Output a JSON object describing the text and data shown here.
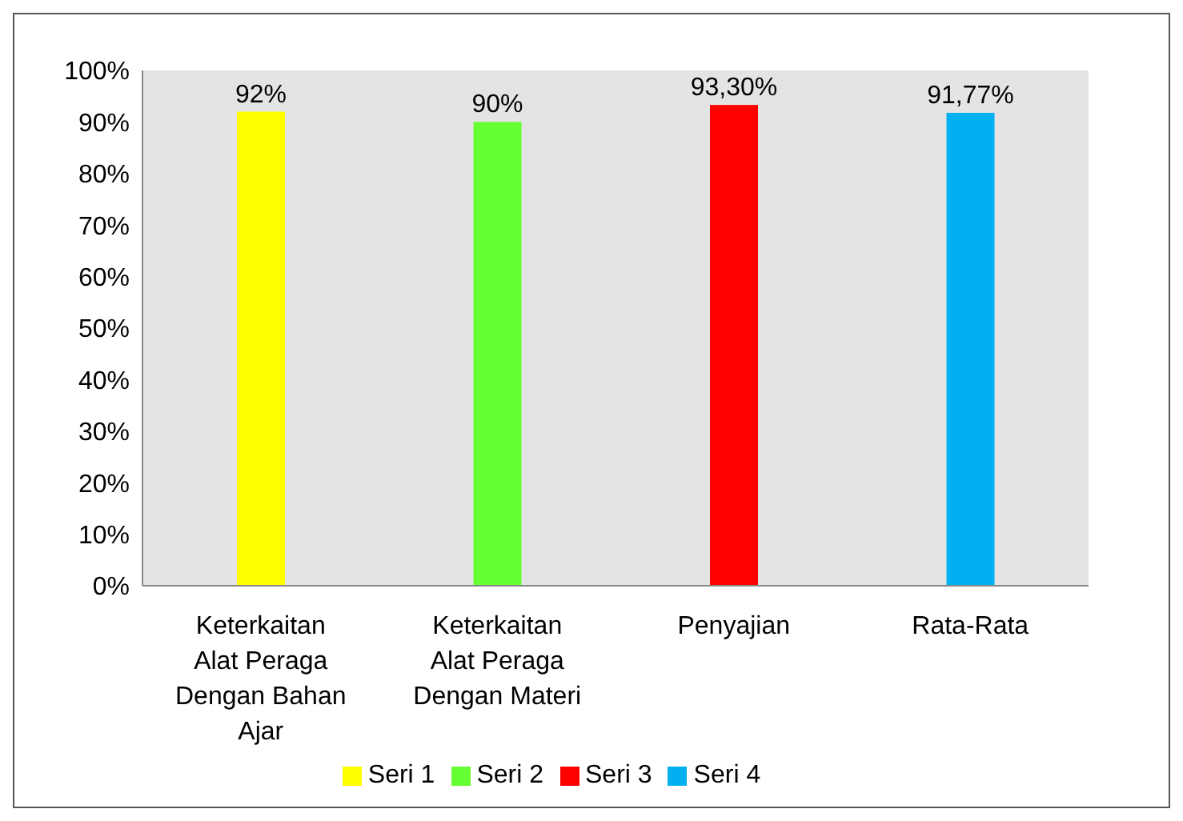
{
  "chart_data": {
    "type": "bar",
    "stacked": true,
    "categories": [
      "Keterkaitan Alat Peraga Dengan Bahan Ajar",
      "Keterkaitan Alat Peraga Dengan Materi",
      "Penyajian",
      "Rata-Rata"
    ],
    "series": [
      {
        "name": "Seri 1",
        "color": "#ffff00",
        "values": [
          92,
          null,
          null,
          null
        ],
        "value_labels": [
          "92%",
          null,
          null,
          null
        ]
      },
      {
        "name": "Seri 2",
        "color": "#66ff33",
        "values": [
          null,
          90,
          null,
          null
        ],
        "value_labels": [
          null,
          "90%",
          null,
          null
        ]
      },
      {
        "name": "Seri 3",
        "color": "#ff0000",
        "values": [
          null,
          null,
          93.3,
          null
        ],
        "value_labels": [
          null,
          null,
          "93,30%",
          null
        ]
      },
      {
        "name": "Seri 4",
        "color": "#00b0f0",
        "values": [
          null,
          null,
          null,
          91.77
        ],
        "value_labels": [
          null,
          null,
          null,
          "91,77%"
        ]
      }
    ],
    "ylim": [
      0,
      100
    ],
    "yticks": [
      {
        "value": 0,
        "label": "0%"
      },
      {
        "value": 10,
        "label": "10%"
      },
      {
        "value": 20,
        "label": "20%"
      },
      {
        "value": 30,
        "label": "30%"
      },
      {
        "value": 40,
        "label": "40%"
      },
      {
        "value": 50,
        "label": "50%"
      },
      {
        "value": 60,
        "label": "60%"
      },
      {
        "value": 70,
        "label": "70%"
      },
      {
        "value": 80,
        "label": "80%"
      },
      {
        "value": 90,
        "label": "90%"
      },
      {
        "value": 100,
        "label": "100%"
      }
    ],
    "grid": false,
    "legend": "bottom"
  }
}
